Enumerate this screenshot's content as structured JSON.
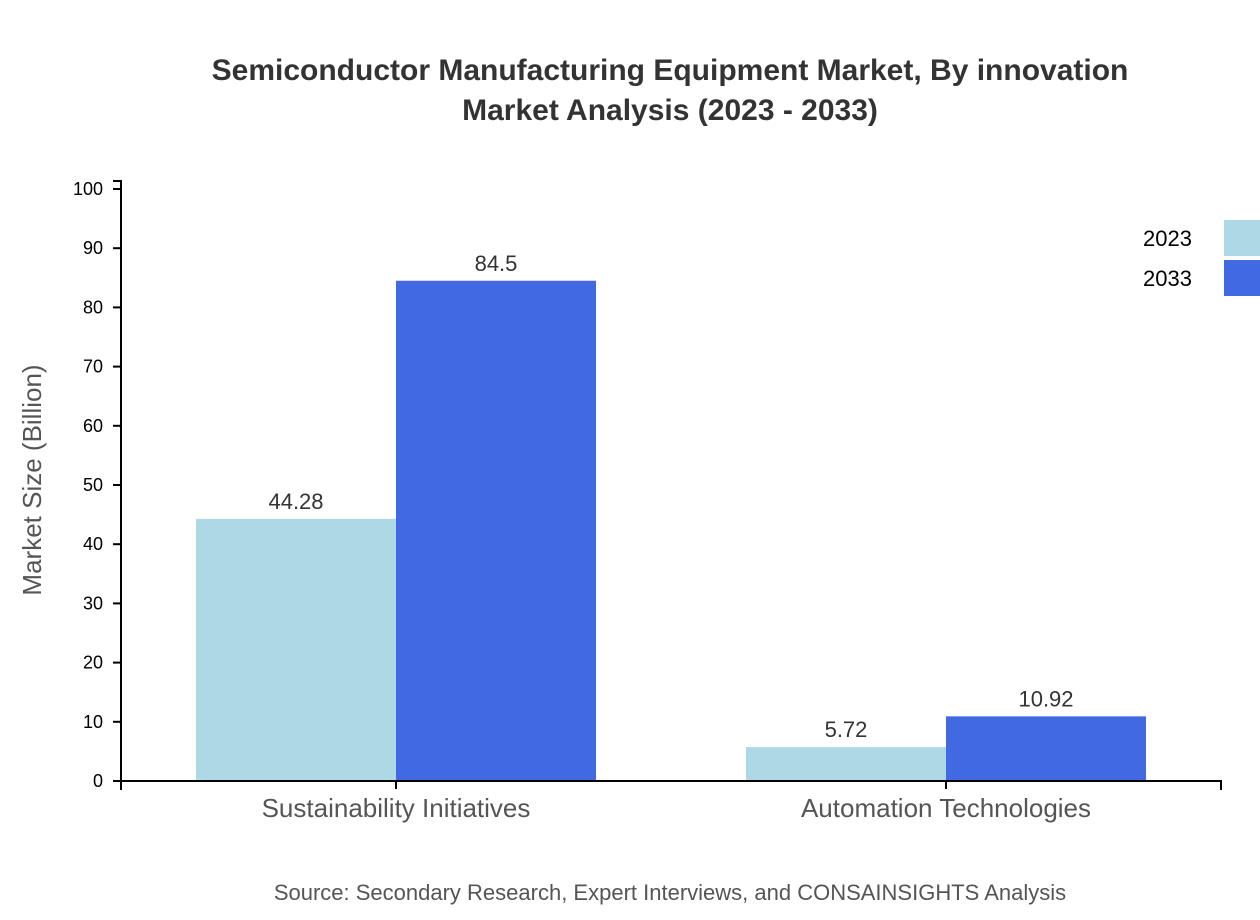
{
  "chart_data": {
    "type": "bar",
    "title": [
      "Semiconductor Manufacturing Equipment Market, By innovation",
      "Market Analysis (2023 - 2033)"
    ],
    "ylabel": "Market Size (Billion)",
    "xlabel": "",
    "ylim": [
      0,
      100
    ],
    "yticks": [
      0,
      10,
      20,
      30,
      40,
      50,
      60,
      70,
      80,
      90,
      100
    ],
    "categories": [
      "Sustainability Initiatives",
      "Automation Technologies"
    ],
    "series": [
      {
        "name": "2023",
        "values": [
          44.28,
          5.72
        ],
        "labels": [
          "44.28",
          "5.72"
        ],
        "color": "#add8e6"
      },
      {
        "name": "2033",
        "values": [
          84.5,
          10.92
        ],
        "labels": [
          "84.5",
          "10.92"
        ],
        "color": "#4169e1"
      }
    ],
    "legend": "top-right",
    "grid": false,
    "source": "Source: Secondary Research, Expert Interviews, and CONSAINSIGHTS Analysis"
  }
}
